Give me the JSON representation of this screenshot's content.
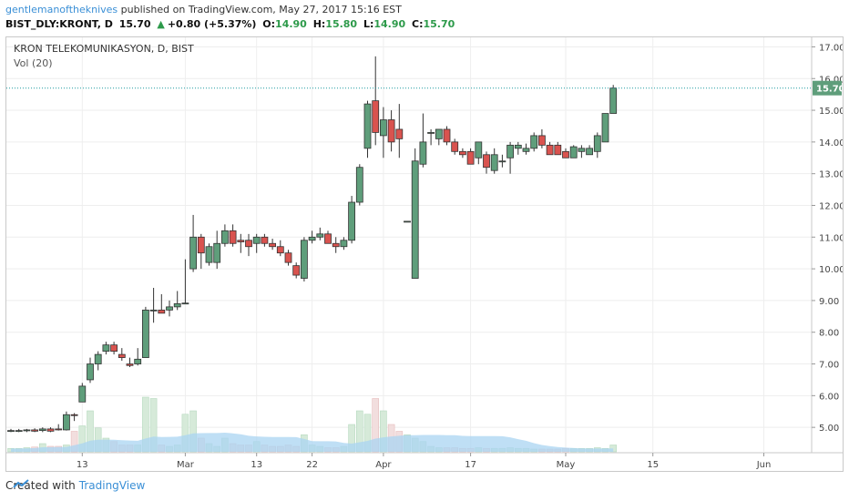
{
  "header": {
    "author": "gentlemanoftheknives",
    "published": "published on TradingView.com, May 27, 2017 15:16 EST",
    "symbol": "BIST_DLY:KRONT, D",
    "last": "15.70",
    "change": "+0.80 (+5.37%)",
    "o_label": "O:",
    "o_value": "14.90",
    "h_label": "H:",
    "h_value": "15.80",
    "l_label": "L:",
    "l_value": "14.90",
    "c_label": "C:",
    "c_value": "15.70"
  },
  "footer": {
    "created_with": "Created with",
    "brand": "TradingView"
  },
  "colors": {
    "up": "#5f9e7b",
    "down": "#d9534f",
    "volume_up": "#d6ead9",
    "volume_down": "#f2dede",
    "volume_ma": "#a9d4f2",
    "price_line": "#1f9ba0"
  },
  "chart_data": {
    "type": "candlestick",
    "title": "KRON TELEKOMUNIKASYON, D, BIST",
    "indicator_label": "Vol (20)",
    "y_ticks": [
      "17.00",
      "16.00",
      "15.00",
      "14.00",
      "13.00",
      "12.00",
      "11.00",
      "10.00",
      "9.00",
      "8.00",
      "7.00",
      "6.00",
      "5.00"
    ],
    "ylim": [
      4.2,
      17.3
    ],
    "x_ticks": [
      {
        "label": "13",
        "index": 9
      },
      {
        "label": "Mar",
        "index": 22
      },
      {
        "label": "13",
        "index": 31
      },
      {
        "label": "22",
        "index": 38
      },
      {
        "label": "Apr",
        "index": 47
      },
      {
        "label": "17",
        "index": 58
      },
      {
        "label": "May",
        "index": 70
      },
      {
        "label": "15",
        "index": 81
      },
      {
        "label": "Jun",
        "index": 95
      }
    ],
    "last_price_label": "15.70",
    "last_price": 15.7,
    "candles": [
      {
        "o": 4.9,
        "h": 4.95,
        "l": 4.85,
        "c": 4.9
      },
      {
        "o": 4.9,
        "h": 4.95,
        "l": 4.85,
        "c": 4.9
      },
      {
        "o": 4.9,
        "h": 4.95,
        "l": 4.85,
        "c": 4.92
      },
      {
        "o": 4.92,
        "h": 4.97,
        "l": 4.85,
        "c": 4.88
      },
      {
        "o": 4.9,
        "h": 5.0,
        "l": 4.85,
        "c": 4.95
      },
      {
        "o": 4.95,
        "h": 5.0,
        "l": 4.85,
        "c": 4.88
      },
      {
        "o": 4.95,
        "h": 5.1,
        "l": 4.9,
        "c": 4.92
      },
      {
        "o": 4.92,
        "h": 5.5,
        "l": 4.9,
        "c": 5.4
      },
      {
        "o": 5.4,
        "h": 5.45,
        "l": 5.2,
        "c": 5.38
      },
      {
        "o": 5.8,
        "h": 6.4,
        "l": 5.8,
        "c": 6.3
      },
      {
        "o": 6.5,
        "h": 7.2,
        "l": 6.4,
        "c": 7.0
      },
      {
        "o": 7.0,
        "h": 7.4,
        "l": 6.8,
        "c": 7.3
      },
      {
        "o": 7.4,
        "h": 7.7,
        "l": 7.3,
        "c": 7.6
      },
      {
        "o": 7.6,
        "h": 7.7,
        "l": 7.3,
        "c": 7.4
      },
      {
        "o": 7.3,
        "h": 7.5,
        "l": 7.1,
        "c": 7.2
      },
      {
        "o": 7.0,
        "h": 7.2,
        "l": 6.9,
        "c": 6.95
      },
      {
        "o": 7.0,
        "h": 7.5,
        "l": 6.95,
        "c": 7.15
      },
      {
        "o": 7.2,
        "h": 8.8,
        "l": 7.2,
        "c": 8.7
      },
      {
        "o": 8.7,
        "h": 9.4,
        "l": 8.3,
        "c": 8.7
      },
      {
        "o": 8.7,
        "h": 9.2,
        "l": 8.6,
        "c": 8.6
      },
      {
        "o": 8.7,
        "h": 9.0,
        "l": 8.5,
        "c": 8.8
      },
      {
        "o": 8.8,
        "h": 9.3,
        "l": 8.7,
        "c": 8.9
      },
      {
        "o": 8.9,
        "h": 10.3,
        "l": 8.9,
        "c": 8.92
      },
      {
        "o": 10.0,
        "h": 11.7,
        "l": 9.9,
        "c": 11.0
      },
      {
        "o": 11.0,
        "h": 11.1,
        "l": 10.0,
        "c": 10.5
      },
      {
        "o": 10.2,
        "h": 10.8,
        "l": 10.1,
        "c": 10.7
      },
      {
        "o": 10.2,
        "h": 11.2,
        "l": 10.0,
        "c": 10.8
      },
      {
        "o": 10.8,
        "h": 11.4,
        "l": 10.7,
        "c": 11.2
      },
      {
        "o": 11.2,
        "h": 11.4,
        "l": 10.7,
        "c": 10.8
      },
      {
        "o": 10.9,
        "h": 11.1,
        "l": 10.5,
        "c": 10.85
      },
      {
        "o": 10.9,
        "h": 11.1,
        "l": 10.4,
        "c": 10.7
      },
      {
        "o": 10.8,
        "h": 11.1,
        "l": 10.5,
        "c": 11.0
      },
      {
        "o": 11.0,
        "h": 11.1,
        "l": 10.7,
        "c": 10.8
      },
      {
        "o": 10.8,
        "h": 10.95,
        "l": 10.6,
        "c": 10.7
      },
      {
        "o": 10.7,
        "h": 10.9,
        "l": 10.4,
        "c": 10.5
      },
      {
        "o": 10.5,
        "h": 10.6,
        "l": 10.1,
        "c": 10.2
      },
      {
        "o": 10.1,
        "h": 10.2,
        "l": 9.7,
        "c": 9.8
      },
      {
        "o": 9.7,
        "h": 11.0,
        "l": 9.6,
        "c": 10.9
      },
      {
        "o": 10.9,
        "h": 11.2,
        "l": 10.8,
        "c": 11.0
      },
      {
        "o": 11.0,
        "h": 11.3,
        "l": 10.9,
        "c": 11.1
      },
      {
        "o": 11.1,
        "h": 11.2,
        "l": 10.8,
        "c": 10.8
      },
      {
        "o": 10.8,
        "h": 11.0,
        "l": 10.5,
        "c": 10.7
      },
      {
        "o": 10.7,
        "h": 11.0,
        "l": 10.6,
        "c": 10.9
      },
      {
        "o": 10.9,
        "h": 12.3,
        "l": 10.8,
        "c": 12.1
      },
      {
        "o": 12.1,
        "h": 13.3,
        "l": 12.0,
        "c": 13.2
      },
      {
        "o": 13.8,
        "h": 15.3,
        "l": 13.5,
        "c": 15.2
      },
      {
        "o": 15.3,
        "h": 16.7,
        "l": 13.9,
        "c": 14.3
      },
      {
        "o": 14.2,
        "h": 15.1,
        "l": 13.5,
        "c": 14.7
      },
      {
        "o": 14.7,
        "h": 15.0,
        "l": 13.7,
        "c": 14.0
      },
      {
        "o": 14.4,
        "h": 15.2,
        "l": 13.5,
        "c": 14.1
      },
      {
        "o": 11.5,
        "h": 11.5,
        "l": 11.5,
        "c": 11.5
      },
      {
        "o": 9.7,
        "h": 13.8,
        "l": 9.7,
        "c": 13.4
      },
      {
        "o": 13.3,
        "h": 14.9,
        "l": 13.2,
        "c": 14.0
      },
      {
        "o": 14.3,
        "h": 14.4,
        "l": 13.9,
        "c": 14.3
      },
      {
        "o": 14.1,
        "h": 14.4,
        "l": 13.9,
        "c": 14.4
      },
      {
        "o": 14.4,
        "h": 14.5,
        "l": 13.9,
        "c": 14.0
      },
      {
        "o": 14.0,
        "h": 14.1,
        "l": 13.6,
        "c": 13.7
      },
      {
        "o": 13.7,
        "h": 13.8,
        "l": 13.5,
        "c": 13.6
      },
      {
        "o": 13.7,
        "h": 13.8,
        "l": 13.3,
        "c": 13.3
      },
      {
        "o": 13.5,
        "h": 14.0,
        "l": 13.3,
        "c": 14.0
      },
      {
        "o": 13.6,
        "h": 13.7,
        "l": 13.0,
        "c": 13.2
      },
      {
        "o": 13.1,
        "h": 13.8,
        "l": 13.0,
        "c": 13.6
      },
      {
        "o": 13.4,
        "h": 13.6,
        "l": 13.2,
        "c": 13.4
      },
      {
        "o": 13.5,
        "h": 14.0,
        "l": 13.0,
        "c": 13.9
      },
      {
        "o": 13.8,
        "h": 14.0,
        "l": 13.6,
        "c": 13.9
      },
      {
        "o": 13.7,
        "h": 13.95,
        "l": 13.6,
        "c": 13.8
      },
      {
        "o": 13.8,
        "h": 14.3,
        "l": 13.7,
        "c": 14.2
      },
      {
        "o": 14.2,
        "h": 14.4,
        "l": 13.8,
        "c": 13.9
      },
      {
        "o": 13.9,
        "h": 14.0,
        "l": 13.6,
        "c": 13.6
      },
      {
        "o": 13.9,
        "h": 14.0,
        "l": 13.6,
        "c": 13.6
      },
      {
        "o": 13.7,
        "h": 13.8,
        "l": 13.5,
        "c": 13.5
      },
      {
        "o": 13.5,
        "h": 13.9,
        "l": 13.5,
        "c": 13.85
      },
      {
        "o": 13.7,
        "h": 13.9,
        "l": 13.5,
        "c": 13.8
      },
      {
        "o": 13.6,
        "h": 13.9,
        "l": 13.6,
        "c": 13.8
      },
      {
        "o": 13.7,
        "h": 14.3,
        "l": 13.5,
        "c": 14.2
      },
      {
        "o": 14.0,
        "h": 14.9,
        "l": 14.0,
        "c": 14.9
      },
      {
        "o": 14.9,
        "h": 15.8,
        "l": 14.9,
        "c": 15.7
      }
    ],
    "volume": [
      0.05,
      0.05,
      0.06,
      0.07,
      0.12,
      0.08,
      0.08,
      0.1,
      0.3,
      0.38,
      0.6,
      0.35,
      0.2,
      0.15,
      0.1,
      0.1,
      0.1,
      0.8,
      0.78,
      0.1,
      0.08,
      0.1,
      0.55,
      0.6,
      0.2,
      0.12,
      0.08,
      0.2,
      0.12,
      0.1,
      0.1,
      0.15,
      0.1,
      0.08,
      0.08,
      0.1,
      0.08,
      0.25,
      0.1,
      0.08,
      0.06,
      0.06,
      0.08,
      0.4,
      0.6,
      0.55,
      0.78,
      0.6,
      0.4,
      0.3,
      0.25,
      0.2,
      0.15,
      0.08,
      0.06,
      0.06,
      0.06,
      0.05,
      0.05,
      0.06,
      0.05,
      0.05,
      0.05,
      0.06,
      0.05,
      0.05,
      0.04,
      0.04,
      0.04,
      0.04,
      0.05,
      0.05,
      0.05,
      0.05,
      0.06,
      0.05,
      0.1
    ]
  }
}
